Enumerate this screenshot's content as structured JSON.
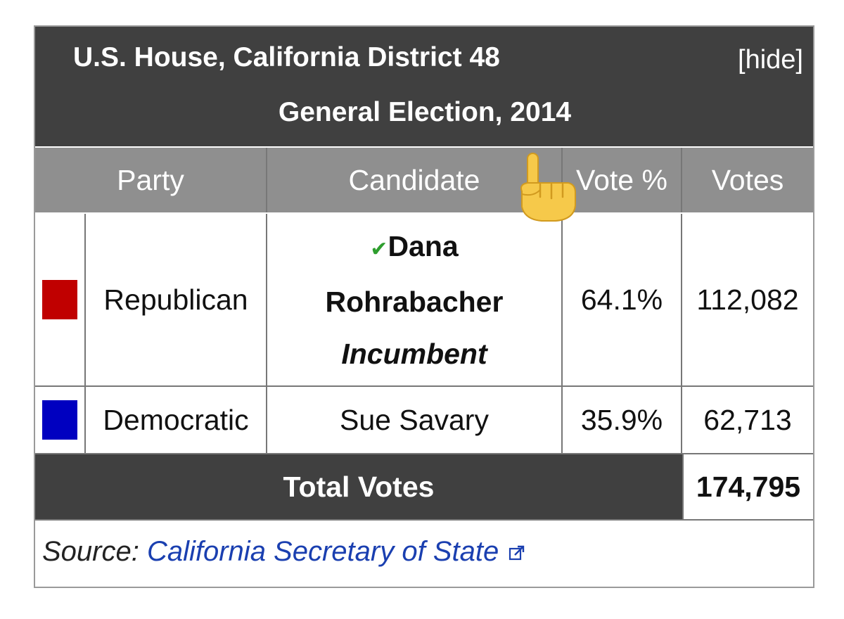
{
  "box": {
    "title_line1": "U.S. House, California District 48",
    "title_line2": "General Election, 2014",
    "toggle_label": "[hide]"
  },
  "table": {
    "headers": [
      "Party",
      "Candidate",
      "Vote %",
      "Votes"
    ],
    "rows": [
      {
        "party": "Republican",
        "party_color": "#c00000",
        "winner_mark": "✔",
        "candidate_line1": "Dana",
        "candidate_line2": "Rohrabacher",
        "candidate_status": "Incumbent",
        "vote_pct": "64.1%",
        "votes": "112,082"
      },
      {
        "party": "Democratic",
        "party_color": "#0000c0",
        "candidate": "Sue Savary",
        "vote_pct": "35.9%",
        "votes": "62,713"
      }
    ],
    "total_label": "Total Votes",
    "total_votes": "174,795"
  },
  "source": {
    "prefix": "Source: ",
    "link_text": "California Secretary of State",
    "link_icon": "external-link-icon"
  },
  "overlay": {
    "icon": "pointing-up-hand-icon"
  }
}
